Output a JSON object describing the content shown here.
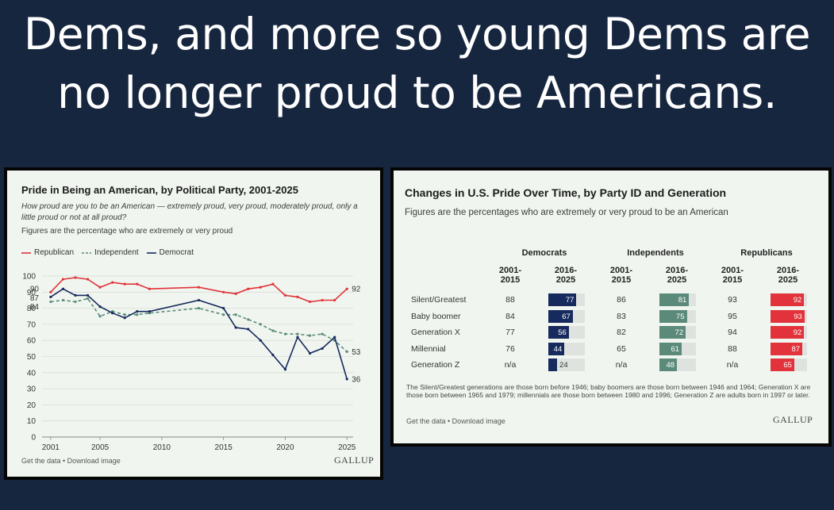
{
  "headline": {
    "line1": "Dems, and more so young Dems are",
    "line2": "no longer proud to be Americans."
  },
  "colors": {
    "background": "#17263f",
    "panel": "#f0f6ef",
    "republican": "#e2323b",
    "independent": "#5b8a7a",
    "democrat": "#172a5e"
  },
  "chart_data": [
    {
      "type": "line",
      "title": "Pride in Being an American, by Political Party, 2001-2025",
      "subtitle": "How proud are you to be an American — extremely proud, very proud, moderately proud, only a little proud or not at all proud?",
      "subtitle2": "Figures are the percentage who are extremely or very proud",
      "legend_position": "top-left",
      "grid": "horizontal",
      "xlim": [
        2000.3,
        2025.5
      ],
      "ylim": [
        0,
        100
      ],
      "x_ticks": [
        2001,
        2005,
        2010,
        2015,
        2020,
        2025
      ],
      "y_ticks": [
        0,
        10,
        20,
        30,
        40,
        50,
        60,
        70,
        80,
        90,
        100
      ],
      "series": [
        {
          "name": "Republican",
          "style": "solid",
          "x": [
            2001,
            2002,
            2003,
            2004,
            2005,
            2006,
            2007,
            2008,
            2009,
            2013,
            2015,
            2016,
            2017,
            2018,
            2019,
            2020,
            2021,
            2022,
            2023,
            2024,
            2025
          ],
          "y": [
            90,
            98,
            99,
            98,
            93,
            96,
            95,
            95,
            92,
            93,
            90,
            89,
            92,
            93,
            95,
            88,
            87,
            84,
            85,
            85,
            92
          ]
        },
        {
          "name": "Independent",
          "style": "dashed",
          "x": [
            2001,
            2002,
            2003,
            2004,
            2005,
            2006,
            2007,
            2008,
            2009,
            2013,
            2015,
            2016,
            2017,
            2018,
            2019,
            2020,
            2021,
            2022,
            2023,
            2024,
            2025
          ],
          "y": [
            84,
            85,
            84,
            86,
            75,
            78,
            76,
            76,
            77,
            80,
            76,
            76,
            73,
            70,
            66,
            64,
            64,
            63,
            64,
            60,
            53
          ]
        },
        {
          "name": "Democrat",
          "style": "solid",
          "x": [
            2001,
            2002,
            2003,
            2004,
            2005,
            2006,
            2007,
            2008,
            2009,
            2013,
            2015,
            2016,
            2017,
            2018,
            2019,
            2020,
            2021,
            2022,
            2023,
            2024,
            2025
          ],
          "y": [
            87,
            92,
            88,
            88,
            81,
            77,
            74,
            78,
            78,
            85,
            80,
            68,
            67,
            60,
            51,
            42,
            62,
            52,
            55,
            62,
            36
          ]
        }
      ],
      "start_labels": [
        "90",
        "87",
        "84"
      ],
      "end_labels": [
        "92",
        "53",
        "36"
      ],
      "footer": "Get the data • Download image",
      "brand": "GALLUP"
    },
    {
      "type": "table",
      "title": "Changes in U.S. Pride Over Time, by Party ID and Generation",
      "subtitle": "Figures are the percentages who are extremely or very proud to be an American",
      "groups": [
        "Democrats",
        "Independents",
        "Republicans"
      ],
      "period_early": "2001-\n2015",
      "period_late": "2016-\n2025",
      "rows": [
        {
          "label": "Silent/Greatest",
          "dem_early": "88",
          "dem_late": 77,
          "ind_early": "86",
          "ind_late": 81,
          "rep_early": "93",
          "rep_late": 92
        },
        {
          "label": "Baby boomer",
          "dem_early": "84",
          "dem_late": 67,
          "ind_early": "83",
          "ind_late": 75,
          "rep_early": "95",
          "rep_late": 93
        },
        {
          "label": "Generation X",
          "dem_early": "77",
          "dem_late": 56,
          "ind_early": "82",
          "ind_late": 72,
          "rep_early": "94",
          "rep_late": 92
        },
        {
          "label": "Millennial",
          "dem_early": "76",
          "dem_late": 44,
          "ind_early": "65",
          "ind_late": 61,
          "rep_early": "88",
          "rep_late": 87
        },
        {
          "label": "Generation Z",
          "dem_early": "n/a",
          "dem_late": 24,
          "ind_early": "n/a",
          "ind_late": 48,
          "rep_early": "n/a",
          "rep_late": 65
        }
      ],
      "note": "The Silent/Greatest generations are those born before 1946; baby boomers are those born between 1946 and 1964; Generation X are those born between 1965 and 1979; millennials are those born between 1980 and 1996; Generation Z are adults born in 1997 or later.",
      "footer": "Get the data • Download image",
      "brand": "GALLUP"
    }
  ]
}
